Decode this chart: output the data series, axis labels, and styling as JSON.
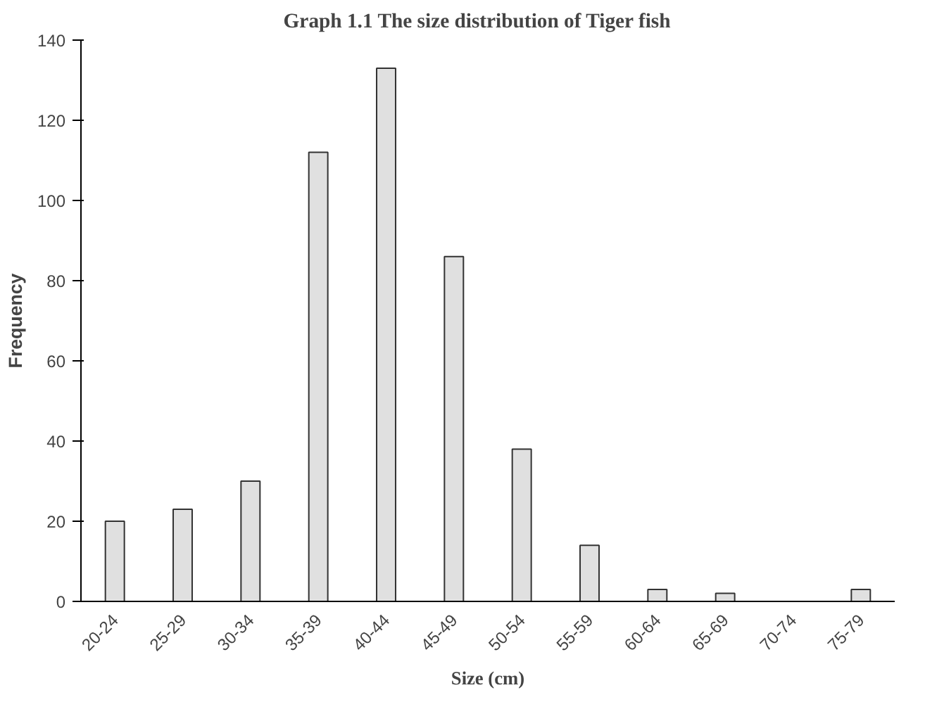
{
  "chart_data": {
    "type": "bar",
    "title": "Graph 1.1     The size distribution of Tiger fish",
    "xlabel": "Size (cm)",
    "ylabel": "Frequency",
    "categories": [
      "20-24",
      "25-29",
      "30-34",
      "35-39",
      "40-44",
      "45-49",
      "50-54",
      "55-59",
      "60-64",
      "65-69",
      "70-74",
      "75-79"
    ],
    "values": [
      20,
      23,
      30,
      112,
      133,
      86,
      38,
      14,
      3,
      2,
      null,
      3
    ],
    "color": "#e0e0e0",
    "ylim": [
      0,
      140
    ],
    "yticks": [
      0,
      20,
      40,
      60,
      80,
      100,
      120,
      140
    ],
    "grid": false
  }
}
